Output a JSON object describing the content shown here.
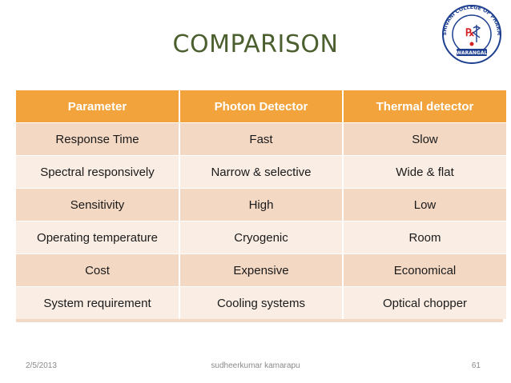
{
  "slide": {
    "title": "COMPARISON"
  },
  "logo": {
    "text_top": "SRI SHIVANI COLLEGE OF PHARMACY",
    "text_bottom": "WARANGAL",
    "colors": {
      "ring": "#1d3f8f",
      "accent": "#d32020"
    }
  },
  "table": {
    "headers": [
      "Parameter",
      "Photon Detector",
      "Thermal detector"
    ],
    "rows": [
      [
        "Response Time",
        "Fast",
        "Slow"
      ],
      [
        "Spectral responsively",
        "Narrow & selective",
        "Wide & flat"
      ],
      [
        "Sensitivity",
        "High",
        "Low"
      ],
      [
        "Operating temperature",
        "Cryogenic",
        "Room"
      ],
      [
        "Cost",
        "Expensive",
        "Economical"
      ],
      [
        "System requirement",
        "Cooling systems",
        "Optical chopper"
      ]
    ],
    "colors": {
      "header": "#f2a33b",
      "row_dark": "#f3d8c4",
      "row_light": "#faede4"
    }
  },
  "footer": {
    "date": "2/5/2013",
    "author": "sudheerkumar kamarapu",
    "page": "61"
  }
}
